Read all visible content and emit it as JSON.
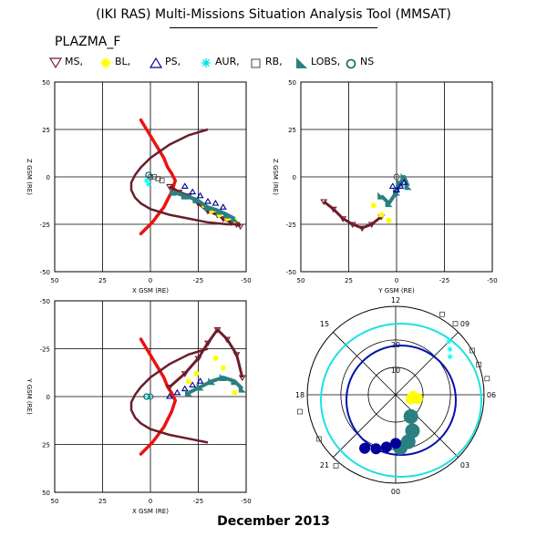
{
  "title": "(IKI RAS) Multi-Missions Situation Analysis Tool (MMSAT)",
  "instrument": "PLAZMA_F",
  "footer": "December 2013",
  "colors": {
    "ms": "#6e1c2a",
    "bl": "#ffff00",
    "ps": "#000099",
    "aur": "#00ffff",
    "rb": "#444444",
    "lobs": "#2c7f80",
    "ns": "#006666",
    "magnetopause": "#ee1111",
    "orbit": "#6a1e2c",
    "orbit_cyan": "#1fe0e0",
    "orbit_blue": "#0010b0",
    "grid": "#000000"
  },
  "legend": [
    {
      "key": "MS",
      "label": "MS,",
      "icon": "triangle-down-icon",
      "color": "#6e1c2a"
    },
    {
      "key": "BL",
      "label": "BL,",
      "icon": "star-icon",
      "color": "#ffff00"
    },
    {
      "key": "PS",
      "label": "PS,",
      "icon": "triangle-up-icon",
      "color": "#000099"
    },
    {
      "key": "AUR",
      "label": "AUR,",
      "icon": "asterisk-icon",
      "color": "#00ffff"
    },
    {
      "key": "RB",
      "label": "RB,",
      "icon": "square-icon",
      "color": "#444444"
    },
    {
      "key": "LOBS",
      "label": "LOBS,",
      "icon": "filled-triangle-icon",
      "color": "#2c7f80"
    },
    {
      "key": "NS",
      "label": "NS",
      "icon": "circle-icon",
      "color": "#006666"
    }
  ],
  "chart_data": [
    {
      "type": "scatter",
      "panel": "xz",
      "xlabel": "X GSM (RE)",
      "ylabel": "Z GSM (RE)",
      "xlim": [
        50,
        -50
      ],
      "ylim": [
        -50,
        50
      ],
      "xticks": [
        "50",
        "25",
        "0",
        "-25",
        "-50"
      ],
      "yticks": [
        "50",
        "25",
        "0",
        "-25",
        "-50"
      ],
      "grid": true,
      "bowshock": {
        "x": [
          5,
          2,
          -1,
          -4,
          -7,
          -9,
          -11,
          -12,
          -13,
          -12,
          -11,
          -9,
          -7,
          -4,
          -1,
          2,
          5
        ],
        "y": [
          30,
          25,
          20,
          15,
          10,
          5,
          2,
          0,
          -2,
          -5,
          -8,
          -12,
          -16,
          -20,
          -24,
          -27,
          -30
        ]
      },
      "trajectory": {
        "x": [
          -30,
          -20,
          -10,
          0,
          5,
          8,
          10,
          10,
          8,
          5,
          0,
          -10,
          -20,
          -30,
          -40,
          -47
        ],
        "y": [
          25,
          22,
          17,
          10,
          5,
          1,
          -3,
          -7,
          -11,
          -14,
          -17,
          -20,
          -22,
          -24,
          -25,
          -25
        ]
      },
      "series": [
        {
          "name": "MS",
          "x": [
            -10,
            -15,
            -20,
            -25,
            -30,
            -35,
            -38,
            -42,
            -45,
            -47
          ],
          "y": [
            -5,
            -8,
            -10,
            -14,
            -18,
            -20,
            -22,
            -24,
            -25,
            -26
          ]
        },
        {
          "name": "BL",
          "x": [
            -28,
            -32,
            -36,
            -40,
            -44
          ],
          "y": [
            -15,
            -18,
            -20,
            -22,
            -23
          ]
        },
        {
          "name": "PS",
          "x": [
            -18,
            -22,
            -26,
            -30,
            -34,
            -38
          ],
          "y": [
            -5,
            -8,
            -10,
            -13,
            -14,
            -16
          ]
        },
        {
          "name": "LOBS",
          "x": [
            -12,
            -18,
            -24,
            -30,
            -36,
            -40,
            -44
          ],
          "y": [
            -8,
            -10,
            -12,
            -16,
            -18,
            -20,
            -22
          ]
        },
        {
          "name": "AUR",
          "x": [
            2,
            1
          ],
          "y": [
            -2,
            -4
          ]
        },
        {
          "name": "NS",
          "x": [
            1
          ],
          "y": [
            1
          ]
        },
        {
          "name": "RB",
          "x": [
            -2,
            -4,
            -6
          ],
          "y": [
            0,
            -1,
            -2
          ]
        }
      ]
    },
    {
      "type": "scatter",
      "panel": "yz",
      "xlabel": "Y GSM (RE)",
      "ylabel": "Z GSM (RE)",
      "xlim": [
        -50,
        50
      ],
      "ylim": [
        -50,
        50
      ],
      "xticks": [
        "50",
        "25",
        "0",
        "-25",
        "-50"
      ],
      "yticks": [
        "50",
        "25",
        "0",
        "-25",
        "-50"
      ],
      "grid": true,
      "series": [
        {
          "name": "MS",
          "x": [
            -38,
            -33,
            -28,
            -23,
            -18,
            -13,
            -8
          ],
          "y": [
            -13,
            -17,
            -22,
            -25,
            -27,
            -25,
            -21
          ]
        },
        {
          "name": "BL",
          "x": [
            -12,
            -8,
            -4
          ],
          "y": [
            -15,
            -20,
            -23
          ]
        },
        {
          "name": "LOBS",
          "x": [
            -8,
            -4,
            0,
            2,
            4,
            6
          ],
          "y": [
            -10,
            -14,
            -8,
            -3,
            0,
            -5
          ]
        },
        {
          "name": "PS",
          "x": [
            -2,
            0,
            2,
            4
          ],
          "y": [
            -5,
            -7,
            -5,
            -3
          ]
        }
      ]
    },
    {
      "type": "scatter",
      "panel": "xy",
      "xlabel": "X GSM (RE)",
      "ylabel": "Y GSM (RE)",
      "xlim": [
        50,
        -50
      ],
      "ylim": [
        50,
        -50
      ],
      "xticks": [
        "50",
        "25",
        "0",
        "-25",
        "-50"
      ],
      "yticks": [
        "-50",
        "-25",
        "0",
        "25",
        "50"
      ],
      "grid": true,
      "bowshock": {
        "x": [
          5,
          2,
          -1,
          -4,
          -7,
          -9,
          -11,
          -12,
          -13,
          -12,
          -11,
          -9,
          -7,
          -4,
          -1,
          2,
          5
        ],
        "y": [
          -30,
          -25,
          -20,
          -15,
          -10,
          -5,
          -2,
          0,
          2,
          5,
          8,
          12,
          16,
          20,
          24,
          27,
          30
        ]
      },
      "trajectory": {
        "x": [
          -30,
          -20,
          -10,
          0,
          5,
          8,
          10,
          10,
          8,
          5,
          0,
          -10,
          -20,
          -30
        ],
        "y": [
          -25,
          -22,
          -17,
          -10,
          -5,
          -1,
          3,
          7,
          11,
          14,
          17,
          20,
          22,
          24
        ]
      },
      "series": [
        {
          "name": "MS",
          "x": [
            -10,
            -18,
            -25,
            -30,
            -35,
            -40,
            -45,
            -48
          ],
          "y": [
            -5,
            -12,
            -20,
            -28,
            -35,
            -30,
            -22,
            -10
          ]
        },
        {
          "name": "BL",
          "x": [
            -20,
            -24,
            -34,
            -38,
            -44
          ],
          "y": [
            -8,
            -12,
            -20,
            -15,
            -2
          ]
        },
        {
          "name": "PS",
          "x": [
            -10,
            -14,
            -18,
            -22,
            -26
          ],
          "y": [
            0,
            -2,
            -4,
            -6,
            -8
          ]
        },
        {
          "name": "LOBS",
          "x": [
            -20,
            -26,
            -32,
            -38,
            -44,
            -48
          ],
          "y": [
            -2,
            -5,
            -8,
            -10,
            -8,
            -4
          ]
        },
        {
          "name": "AUR",
          "x": [
            1
          ],
          "y": [
            0
          ]
        },
        {
          "name": "NS",
          "x": [
            2
          ],
          "y": [
            0
          ]
        }
      ]
    },
    {
      "type": "polar",
      "panel": "polar",
      "angle_labels": [
        "12",
        "09",
        "06",
        "03",
        "00",
        "21",
        "18",
        "15"
      ],
      "radius_labels": [
        "20",
        "10"
      ],
      "series": [
        {
          "name": "BL",
          "angle_deg": [
            95,
            100,
            105
          ],
          "r": [
            0.2,
            0.25,
            0.18
          ]
        },
        {
          "name": "LOBS",
          "angle_deg": [
            145,
            155,
            165,
            175
          ],
          "r": [
            0.3,
            0.45,
            0.55,
            0.6
          ]
        },
        {
          "name": "PS",
          "angle_deg": [
            180,
            190,
            200,
            210
          ],
          "r": [
            0.55,
            0.6,
            0.65,
            0.7
          ]
        },
        {
          "name": "AUR",
          "angle_deg": [
            45,
            50,
            55
          ],
          "r": [
            0.85,
            0.8,
            0.75
          ]
        },
        {
          "name": "RB",
          "angle_deg": [
            30,
            40,
            60,
            70,
            80,
            220,
            240,
            260
          ],
          "r": [
            1.05,
            1.05,
            1.0,
            1.0,
            1.05,
            1.05,
            1.0,
            1.1
          ]
        }
      ]
    }
  ]
}
